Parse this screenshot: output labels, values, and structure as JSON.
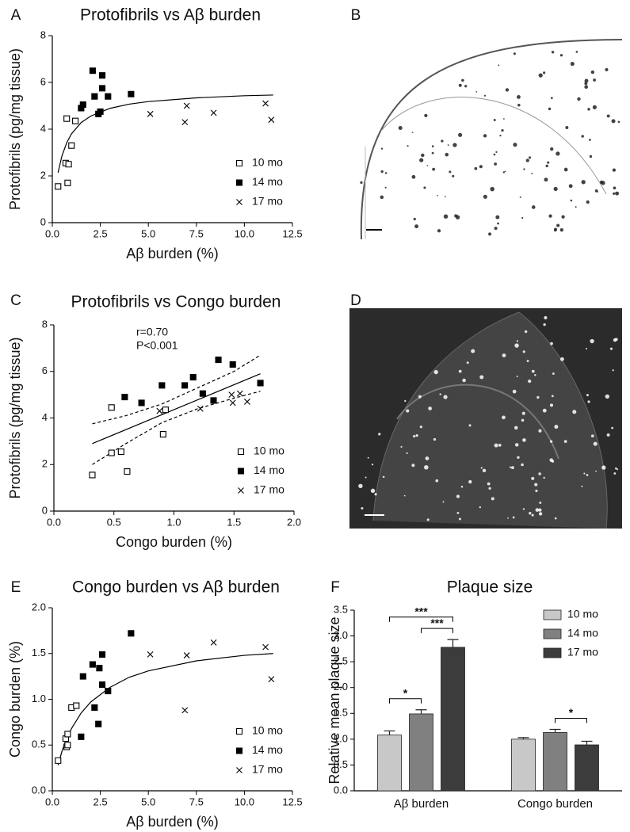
{
  "chart_data": [
    {
      "type": "scatter",
      "panel": "A",
      "title": "Protofibrils vs Aβ burden",
      "x_label": "Aβ burden (%)",
      "y_label": "Protofibrils (pg/mg tissue)",
      "xlim": [
        0,
        12.5
      ],
      "xticks": [
        {
          "value": 0,
          "label": "0.0"
        },
        2.5,
        {
          "value": 5,
          "label": "5.0"
        },
        7.5,
        {
          "value": 10,
          "label": "10.0"
        },
        12.5
      ],
      "ylim": [
        0,
        8
      ],
      "yticks": [
        0,
        2,
        4,
        6,
        8
      ],
      "legend": "lower right",
      "series": [
        {
          "name": "10 mo",
          "marker": "open-square",
          "color": "#000000",
          "x": [
            0.3,
            0.7,
            0.8,
            0.85,
            1.0,
            0.75,
            1.2
          ],
          "values": [
            1.55,
            2.55,
            1.7,
            2.5,
            3.3,
            4.45,
            4.35
          ]
        },
        {
          "name": "14 mo",
          "marker": "filled-square",
          "color": "#000000",
          "x": [
            1.5,
            1.6,
            2.1,
            2.2,
            2.4,
            2.5,
            2.6,
            2.6,
            2.9,
            4.1
          ],
          "values": [
            4.9,
            5.05,
            6.5,
            5.4,
            4.65,
            4.75,
            5.75,
            6.3,
            5.4,
            5.5
          ]
        },
        {
          "name": "17 mo",
          "marker": "cross",
          "color": "#000000",
          "x": [
            5.1,
            6.9,
            7.0,
            8.4,
            11.1,
            11.4
          ],
          "values": [
            4.65,
            4.3,
            5.0,
            4.7,
            5.1,
            4.4
          ]
        }
      ],
      "lines": [
        {
          "style": "solid",
          "x": [
            0.3,
            0.5,
            0.75,
            1,
            1.5,
            2,
            3,
            4,
            5,
            7.5,
            10,
            11.5
          ],
          "values": [
            2.14,
            2.85,
            3.42,
            3.8,
            4.28,
            4.56,
            4.89,
            5.07,
            5.18,
            5.34,
            5.43,
            5.46
          ]
        }
      ]
    },
    {
      "type": "image",
      "panel": "B",
      "background": "#ffffff"
    },
    {
      "type": "scatter",
      "panel": "C",
      "title": "Protofibrils vs Congo burden",
      "x_label": "Congo burden (%)",
      "y_label": "Protofibrils (pg/mg tissue)",
      "annotations": [
        "r=0.70",
        "P<0.001"
      ],
      "xlim": [
        0,
        2
      ],
      "xticks": [
        {
          "value": 0,
          "label": "0.0"
        },
        0.5,
        {
          "value": 1,
          "label": "1.0"
        },
        1.5,
        {
          "value": 2,
          "label": "2.0"
        }
      ],
      "ylim": [
        0,
        8
      ],
      "yticks": [
        0,
        2,
        4,
        6,
        8
      ],
      "legend": "lower right",
      "series": [
        {
          "name": "10 mo",
          "marker": "open-square",
          "color": "#000000",
          "x": [
            0.32,
            0.48,
            0.48,
            0.56,
            0.61,
            0.91,
            0.93
          ],
          "values": [
            1.55,
            4.45,
            2.5,
            2.55,
            1.7,
            3.3,
            4.35
          ]
        },
        {
          "name": "14 mo",
          "marker": "filled-square",
          "color": "#000000",
          "x": [
            0.59,
            0.73,
            0.9,
            1.09,
            1.16,
            1.24,
            1.33,
            1.37,
            1.49,
            1.72
          ],
          "values": [
            4.9,
            4.65,
            5.4,
            5.4,
            5.75,
            5.05,
            4.75,
            6.5,
            6.3,
            5.5
          ]
        },
        {
          "name": "17 mo",
          "marker": "cross",
          "color": "#000000",
          "x": [
            0.88,
            1.22,
            1.48,
            1.49,
            1.55,
            1.61
          ],
          "values": [
            4.3,
            4.4,
            5.0,
            4.65,
            5.05,
            4.7
          ]
        }
      ],
      "lines": [
        {
          "style": "solid",
          "x": [
            0.32,
            1.72
          ],
          "values": [
            2.9,
            5.9
          ]
        },
        {
          "style": "dashed",
          "x": [
            0.32,
            0.6,
            0.9,
            1.2,
            1.5,
            1.72
          ],
          "values": [
            3.75,
            4.1,
            4.6,
            5.3,
            6.0,
            6.7
          ]
        },
        {
          "style": "dashed",
          "x": [
            0.32,
            0.6,
            0.9,
            1.2,
            1.5,
            1.72
          ],
          "values": [
            2.0,
            2.9,
            3.8,
            4.4,
            4.85,
            5.15
          ]
        }
      ]
    },
    {
      "type": "image",
      "panel": "D",
      "background": "#2b2b2b"
    },
    {
      "type": "scatter",
      "panel": "E",
      "title": "Congo burden vs Aβ burden",
      "x_label": "Aβ burden (%)",
      "y_label": "Congo burden (%)",
      "xlim": [
        0,
        12.5
      ],
      "xticks": [
        {
          "value": 0,
          "label": "0.0"
        },
        2.5,
        {
          "value": 5,
          "label": "5.0"
        },
        7.5,
        {
          "value": 10,
          "label": "10.0"
        },
        12.5
      ],
      "ylim": [
        0,
        2
      ],
      "yticks": [
        {
          "value": 0,
          "label": "0.0"
        },
        0.5,
        {
          "value": 1,
          "label": "1.0"
        },
        1.5,
        {
          "value": 2,
          "label": "2.0"
        }
      ],
      "legend": "lower right",
      "series": [
        {
          "name": "10 mo",
          "marker": "open-square",
          "color": "#000000",
          "x": [
            0.3,
            0.7,
            0.75,
            0.8,
            0.8,
            1.0,
            1.25
          ],
          "values": [
            0.33,
            0.57,
            0.48,
            0.62,
            0.5,
            0.91,
            0.93
          ]
        },
        {
          "name": "14 mo",
          "marker": "filled-square",
          "color": "#000000",
          "x": [
            1.5,
            1.6,
            2.1,
            2.2,
            2.4,
            2.45,
            2.6,
            2.6,
            2.9,
            4.1
          ],
          "values": [
            0.59,
            1.25,
            1.38,
            0.91,
            0.73,
            1.34,
            1.49,
            1.16,
            1.09,
            1.72
          ]
        },
        {
          "name": "17 mo",
          "marker": "cross",
          "color": "#000000",
          "x": [
            5.1,
            6.9,
            7.0,
            8.4,
            11.1,
            11.4
          ],
          "values": [
            1.49,
            0.88,
            1.48,
            1.62,
            1.57,
            1.22
          ]
        }
      ],
      "lines": [
        {
          "style": "solid",
          "x": [
            0.3,
            0.5,
            0.75,
            1,
            1.5,
            2,
            3,
            4,
            5,
            7.5,
            10,
            11.5
          ],
          "values": [
            0.28,
            0.43,
            0.57,
            0.68,
            0.85,
            0.97,
            1.13,
            1.24,
            1.31,
            1.42,
            1.48,
            1.5
          ]
        }
      ]
    },
    {
      "type": "bar",
      "panel": "F",
      "title": "Plaque size",
      "y_label": "Relative mean plaque size",
      "categories": [
        "Aβ burden",
        "Congo burden"
      ],
      "ylim": [
        0,
        3.5
      ],
      "yticks": [
        {
          "value": 0,
          "label": "0.0"
        },
        0.5,
        {
          "value": 1,
          "label": "1.0"
        },
        1.5,
        {
          "value": 2,
          "label": "2.0"
        },
        2.5,
        {
          "value": 3,
          "label": "3.0"
        },
        3.5
      ],
      "legend": "upper right",
      "series": [
        {
          "name": "10 mo",
          "color": "#c8c8c8",
          "values": [
            1.08,
            1.0
          ],
          "errors": [
            0.08,
            0.03
          ]
        },
        {
          "name": "14 mo",
          "color": "#808080",
          "values": [
            1.49,
            1.13
          ],
          "errors": [
            0.08,
            0.06
          ]
        },
        {
          "name": "17 mo",
          "color": "#3c3c3c",
          "values": [
            2.78,
            0.89
          ],
          "errors": [
            0.15,
            0.07
          ]
        }
      ],
      "significance": [
        {
          "group": 0,
          "from": 0,
          "to": 1,
          "label": "*"
        },
        {
          "group": 0,
          "from": 1,
          "to": 2,
          "label": "***"
        },
        {
          "group": 0,
          "from": 0,
          "to": 2,
          "label": "***"
        },
        {
          "group": 1,
          "from": 1,
          "to": 2,
          "label": "*"
        }
      ]
    }
  ]
}
